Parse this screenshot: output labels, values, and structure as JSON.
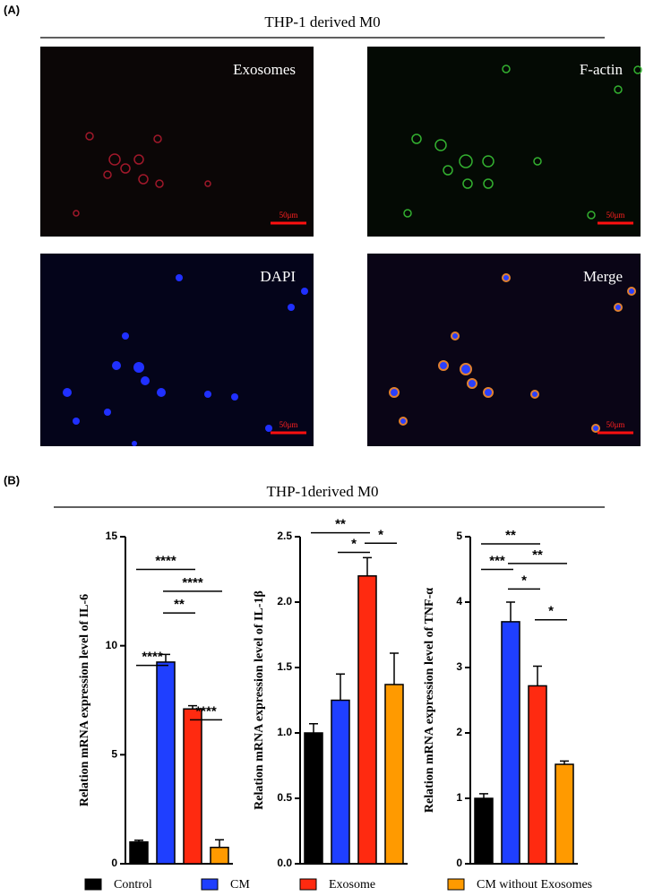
{
  "panel_a": {
    "label": "(A)",
    "title": "THP-1 derived M0",
    "images": [
      {
        "label": "Exosomes",
        "scale_bar": "50μm"
      },
      {
        "label": "F-actin",
        "scale_bar": "50μm"
      },
      {
        "label": "DAPI",
        "scale_bar": "50μm"
      },
      {
        "label": "Merge",
        "scale_bar": "50μm"
      }
    ]
  },
  "panel_b": {
    "label": "(B)",
    "title": "THP-1derived M0"
  },
  "legend": [
    {
      "name": "Control",
      "color": "#000000"
    },
    {
      "name": "CM",
      "color": "#1f3fff"
    },
    {
      "name": "Exosome",
      "color": "#ff2a10"
    },
    {
      "name": "CM without Exosomes",
      "color": "#ff9a00"
    }
  ],
  "chart_data": [
    {
      "type": "bar",
      "ylabel": "Relation mRNA expression  level of IL-6",
      "categories": [
        null,
        null,
        null,
        null
      ],
      "values": [
        1.0,
        9.25,
        7.1,
        0.75
      ],
      "errors": [
        0.08,
        0.35,
        0.15,
        0.35
      ],
      "colors": [
        "#000000",
        "#1f3fff",
        "#ff2a10",
        "#ff9a00"
      ],
      "ylim": [
        0,
        15
      ],
      "yticks": [
        0,
        5,
        10,
        15
      ],
      "annotations": [
        {
          "label": "****",
          "from": 0,
          "to": 2,
          "y": 13.5
        },
        {
          "label": "****",
          "from": 1,
          "to": 3,
          "y": 12.5
        },
        {
          "label": "**",
          "from": 1,
          "to": 2,
          "y": 11.5
        },
        {
          "label": "****",
          "from": 0,
          "to": 1,
          "y": 9.1
        },
        {
          "label": "****",
          "from": 2,
          "to": 3,
          "y": 6.6
        }
      ]
    },
    {
      "type": "bar",
      "ylabel": "Relation mRNA expression  level of IL-1β",
      "categories": [
        null,
        null,
        null,
        null
      ],
      "values": [
        1.0,
        1.25,
        2.2,
        1.37
      ],
      "errors": [
        0.07,
        0.2,
        0.14,
        0.24
      ],
      "colors": [
        "#000000",
        "#1f3fff",
        "#ff2a10",
        "#ff9a00"
      ],
      "ylim": [
        0,
        2.5
      ],
      "yticks": [
        {
          "value": 0,
          "label": "0.0"
        },
        0.5,
        {
          "value": 1,
          "label": "1.0"
        },
        1.5,
        {
          "value": 2,
          "label": "2.0"
        },
        2.5
      ],
      "annotations": [
        {
          "label": "**",
          "from": 0,
          "to": 2,
          "y": 2.53
        },
        {
          "label": "*",
          "from": 1,
          "to": 2,
          "y": 2.38
        },
        {
          "label": "*",
          "from": 2,
          "to": 3,
          "y": 2.45
        }
      ]
    },
    {
      "type": "bar",
      "ylabel": "Relation mRNA expression  level of TNF-α",
      "categories": [
        null,
        null,
        null,
        null
      ],
      "values": [
        1.0,
        3.7,
        2.72,
        1.52
      ],
      "errors": [
        0.07,
        0.3,
        0.3,
        0.05
      ],
      "colors": [
        "#000000",
        "#1f3fff",
        "#ff2a10",
        "#ff9a00"
      ],
      "ylim": [
        0,
        5
      ],
      "yticks": [
        0,
        1,
        2,
        3,
        4,
        5
      ],
      "annotations": [
        {
          "label": "**",
          "from": 0,
          "to": 2,
          "y": 4.89
        },
        {
          "label": "**",
          "from": 1,
          "to": 3,
          "y": 4.59
        },
        {
          "label": "***",
          "from": 0,
          "to": 1,
          "y": 4.5
        },
        {
          "label": "*",
          "from": 1,
          "to": 2,
          "y": 4.2
        },
        {
          "label": "*",
          "from": 2,
          "to": 3,
          "y": 3.73
        }
      ]
    }
  ]
}
